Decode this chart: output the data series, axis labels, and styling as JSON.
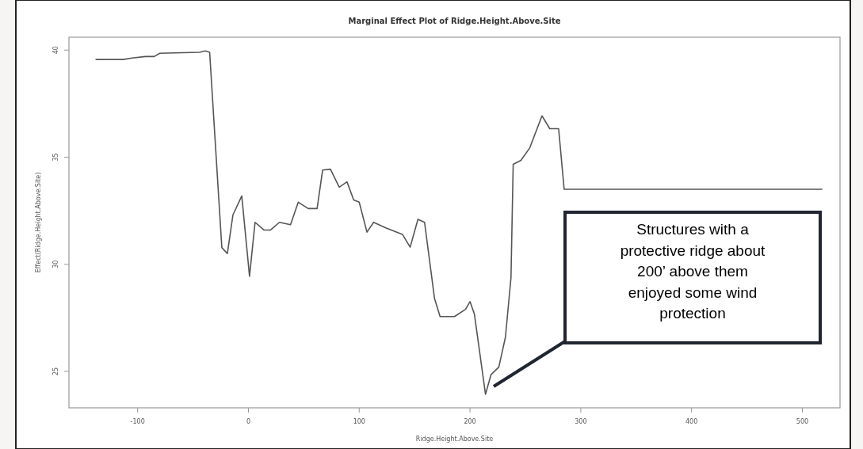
{
  "chart_data": {
    "type": "line",
    "title": "Marginal Effect Plot of Ridge.Height.Above.Site",
    "xlabel": "Ridge.Height.Above.Site",
    "ylabel": "Effect(Ridge.Height.Above.Site)",
    "x": [
      -138,
      -113,
      -105,
      -93,
      -85,
      -80,
      -44,
      -39,
      -35,
      -24,
      -19,
      -14,
      -6,
      1,
      6,
      14,
      20,
      28,
      38,
      45,
      54,
      62,
      67,
      74,
      82,
      89,
      95,
      100,
      107,
      113,
      124,
      139,
      146,
      153,
      159,
      168,
      173,
      186,
      196,
      200,
      204,
      214,
      219,
      226,
      232,
      237,
      239,
      246,
      254,
      265,
      272,
      280,
      285,
      518
    ],
    "series": [
      {
        "color": "#555555",
        "values": [
          39.56,
          39.56,
          39.63,
          39.7,
          39.7,
          39.85,
          39.9,
          39.96,
          39.9,
          30.78,
          30.5,
          32.3,
          33.19,
          29.44,
          31.96,
          31.6,
          31.6,
          31.96,
          31.85,
          32.9,
          32.6,
          32.6,
          34.4,
          34.44,
          33.6,
          33.85,
          33.0,
          32.9,
          31.5,
          31.96,
          31.7,
          31.4,
          30.8,
          32.1,
          31.96,
          28.4,
          27.56,
          27.56,
          27.9,
          28.26,
          27.67,
          23.93,
          24.85,
          25.2,
          26.6,
          29.37,
          34.67,
          34.85,
          35.44,
          36.93,
          36.33,
          36.33,
          33.5,
          33.5
        ]
      }
    ],
    "xlim": [
      -162,
      534
    ],
    "ylim": [
      23.3,
      40.6
    ],
    "xticks": [
      -100,
      0,
      100,
      200,
      300,
      400,
      500
    ],
    "yticks": [
      25,
      30,
      35,
      40
    ],
    "grid": false,
    "marker": "none",
    "line_style": "solid",
    "annotations": [
      "Structures with a protective ridge about 200’ above them enjoyed some wind protection"
    ]
  }
}
